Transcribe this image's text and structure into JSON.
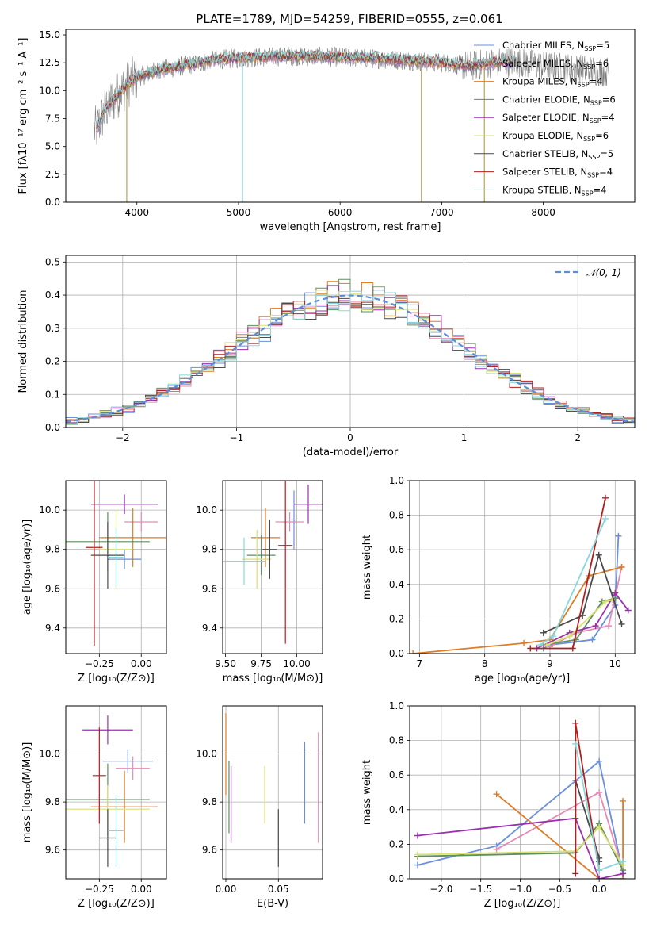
{
  "colors": [
    "#6a8fdc",
    "#e889b5",
    "#e07b26",
    "#5e8f5e",
    "#9a2fb0",
    "#d8e070",
    "#4a4a4a",
    "#b21f1f",
    "#86d8dc"
  ],
  "chart_data": [
    {
      "id": "spectrum",
      "type": "line",
      "title": "PLATE=1789, MJD=54259, FIBERID=0555, z=0.061",
      "xlabel": "wavelength [Angstrom, rest frame]",
      "ylabel": "Flux [fλ10⁻¹⁷ erg cm⁻² s⁻¹ A⁻¹]",
      "xlim": [
        3300,
        8900
      ],
      "ylim": [
        0,
        15.5
      ],
      "xticks": [
        4000,
        5000,
        6000,
        7000,
        8000
      ],
      "yticks": [
        0.0,
        2.5,
        5.0,
        7.5,
        10.0,
        12.5,
        15.0
      ],
      "ytick_labels": [
        "0.0",
        "2.5",
        "5.0",
        "7.5",
        "10.0",
        "12.5",
        "15.0"
      ],
      "grid": false,
      "legend_position": "right",
      "legend": [
        {
          "name": "Chabrier MILES, N",
          "sub": "SSP",
          "suffix": "=5"
        },
        {
          "name": "Salpeter MILES, N",
          "sub": "SSP",
          "suffix": "=6"
        },
        {
          "name": "Kroupa MILES, N",
          "sub": "SSP",
          "suffix": "=4"
        },
        {
          "name": "Chabrier ELODIE, N",
          "sub": "SSP",
          "suffix": "=6"
        },
        {
          "name": "Salpeter ELODIE, N",
          "sub": "SSP",
          "suffix": "=4"
        },
        {
          "name": "Kroupa ELODIE, N",
          "sub": "SSP",
          "suffix": "=6"
        },
        {
          "name": "Chabrier STELIB, N",
          "sub": "SSP",
          "suffix": "=5"
        },
        {
          "name": "Salpeter STELIB, N",
          "sub": "SSP",
          "suffix": "=4"
        },
        {
          "name": "Kroupa STELIB, N",
          "sub": "SSP",
          "suffix": "=4"
        }
      ],
      "data_color": "#808080",
      "continuum_x": [
        3600,
        3700,
        3900,
        4000,
        4200,
        4500,
        4800,
        5000,
        5200,
        5500,
        6000,
        6500,
        7000,
        7300,
        7500,
        7700,
        8000,
        8500,
        8900
      ],
      "continuum_y": [
        6.5,
        8.5,
        10.5,
        11.2,
        11.8,
        12.3,
        12.8,
        12.9,
        13.0,
        13.1,
        13.0,
        12.8,
        12.5,
        12.2,
        12.5,
        12.6,
        12.2,
        11.8,
        11.6
      ],
      "absorption_lines": [
        {
          "x": 3900,
          "y": 0
        },
        {
          "x": 5040,
          "y": 0
        },
        {
          "x": 6800,
          "y": 0
        },
        {
          "x": 7420,
          "y": 0
        }
      ]
    },
    {
      "id": "residuals",
      "type": "bar",
      "xlabel": "(data-model)/error",
      "ylabel": "Normed distribution",
      "xlim": [
        -2.5,
        2.5
      ],
      "ylim": [
        0,
        0.52
      ],
      "xticks": [
        -2,
        -1,
        0,
        1,
        2
      ],
      "xtick_labels": [
        "−2",
        "−1",
        "0",
        "1",
        "2"
      ],
      "yticks": [
        0.0,
        0.1,
        0.2,
        0.3,
        0.4,
        0.5
      ],
      "ytick_labels": [
        "0.0",
        "0.1",
        "0.2",
        "0.3",
        "0.4",
        "0.5"
      ],
      "grid": true,
      "legend_position": "top-right",
      "gauss_label": "𝒩(0, 1)",
      "gauss_color": "#5b8ed6",
      "bin_width": 0.1
    },
    {
      "id": "age-z",
      "type": "scatter",
      "xlabel": "Z [log₁₀(Z/Z⊙)]",
      "ylabel": "age  [log₁₀(age/yr)]",
      "xlim": [
        -0.45,
        0.15
      ],
      "ylim": [
        9.27,
        10.15
      ],
      "xticks": [
        -0.25,
        0.0
      ],
      "xtick_labels": [
        "−0.25",
        "0.00"
      ],
      "yticks": [
        9.4,
        9.6,
        9.8,
        10.0
      ],
      "ytick_labels": [
        "9.4",
        "9.6",
        "9.8",
        "10.0"
      ],
      "grid": true,
      "points": [
        {
          "x": -0.1,
          "xerr": 0.1,
          "y": 9.75,
          "yerr": 0.05
        },
        {
          "x": 0.0,
          "xerr": 0.1,
          "y": 9.94,
          "yerr": 0.05
        },
        {
          "x": -0.05,
          "xerr": 0.2,
          "y": 9.86,
          "yerr": 0.15
        },
        {
          "x": -0.2,
          "xerr": 0.25,
          "y": 9.84,
          "yerr": 0.15
        },
        {
          "x": -0.1,
          "xerr": 0.2,
          "y": 10.03,
          "yerr": 0.05
        },
        {
          "x": -0.15,
          "xerr": 0.1,
          "y": 9.8,
          "yerr": 0.2
        },
        {
          "x": -0.2,
          "xerr": 0.1,
          "y": 9.77,
          "yerr": 0.17
        },
        {
          "x": -0.28,
          "xerr": 0.05,
          "y": 9.81,
          "yerr": 0.5
        },
        {
          "x": -0.15,
          "xerr": 0.05,
          "y": 9.76,
          "yerr": 0.15
        }
      ]
    },
    {
      "id": "age-mass",
      "type": "scatter",
      "xlabel": "mass [log₁₀(M/M⊙)]",
      "ylabel": "",
      "xlim": [
        9.48,
        10.18
      ],
      "ylim": [
        9.27,
        10.15
      ],
      "xticks": [
        9.5,
        9.75,
        10.0
      ],
      "xtick_labels": [
        "9.50",
        "9.75",
        "10.00"
      ],
      "yticks": [
        9.4,
        9.6,
        9.8,
        10.0
      ],
      "ytick_labels": [
        "9.4",
        "9.6",
        "9.8",
        "10.0"
      ],
      "grid": true,
      "points": [
        {
          "x": 9.98,
          "xerr": 0.02,
          "y": 9.95,
          "yerr": 0.15
        },
        {
          "x": 9.95,
          "xerr": 0.1,
          "y": 9.94,
          "yerr": 0.05
        },
        {
          "x": 9.78,
          "xerr": 0.1,
          "y": 9.86,
          "yerr": 0.15
        },
        {
          "x": 9.75,
          "xerr": 0.1,
          "y": 9.77,
          "yerr": 0.1
        },
        {
          "x": 10.08,
          "xerr": 0.1,
          "y": 10.03,
          "yerr": 0.1
        },
        {
          "x": 9.72,
          "xerr": 0.1,
          "y": 9.75,
          "yerr": 0.15
        },
        {
          "x": 9.81,
          "xerr": 0.05,
          "y": 9.8,
          "yerr": 0.15
        },
        {
          "x": 9.92,
          "xerr": 0.05,
          "y": 9.82,
          "yerr": 0.5
        },
        {
          "x": 9.63,
          "xerr": 0.15,
          "y": 9.74,
          "yerr": 0.12
        }
      ]
    },
    {
      "id": "weight-age",
      "type": "line",
      "xlabel": "age  [log₁₀(age/yr)]",
      "ylabel": "mass weight",
      "xlim": [
        6.85,
        10.3
      ],
      "ylim": [
        0,
        1.0
      ],
      "xticks": [
        7,
        8,
        9,
        10
      ],
      "xtick_labels": [
        "7",
        "8",
        "9",
        "10"
      ],
      "yticks": [
        0.0,
        0.2,
        0.4,
        0.6,
        0.8,
        1.0
      ],
      "ytick_labels": [
        "0.0",
        "0.2",
        "0.4",
        "0.6",
        "0.8",
        "1.0"
      ],
      "grid": true,
      "series": [
        {
          "x": [
            8.9,
            9.0,
            9.65,
            10.0,
            10.05
          ],
          "y": [
            0.03,
            0.05,
            0.08,
            0.28,
            0.68
          ]
        },
        {
          "x": [
            9.0,
            9.4,
            9.9,
            10.1
          ],
          "y": [
            0.04,
            0.12,
            0.16,
            0.5
          ]
        },
        {
          "x": [
            6.9,
            8.6,
            9.0,
            9.6,
            10.1
          ],
          "y": [
            0.0,
            0.06,
            0.08,
            0.45,
            0.5
          ]
        },
        {
          "x": [
            8.9,
            9.4,
            9.8,
            10.0
          ],
          "y": [
            0.05,
            0.08,
            0.3,
            0.32
          ]
        },
        {
          "x": [
            8.8,
            9.3,
            9.7,
            10.0,
            10.2
          ],
          "y": [
            0.03,
            0.12,
            0.16,
            0.35,
            0.25
          ]
        },
        {
          "x": [
            8.95,
            9.3,
            9.85,
            9.95
          ],
          "y": [
            0.05,
            0.1,
            0.3,
            0.31
          ]
        },
        {
          "x": [
            8.9,
            9.5,
            9.75,
            10.1
          ],
          "y": [
            0.12,
            0.22,
            0.57,
            0.17
          ]
        },
        {
          "x": [
            8.7,
            9.35,
            9.85
          ],
          "y": [
            0.03,
            0.03,
            0.9
          ]
        },
        {
          "x": [
            8.85,
            9.05,
            9.85
          ],
          "y": [
            0.05,
            0.1,
            0.78
          ]
        }
      ]
    },
    {
      "id": "mass-z",
      "type": "scatter",
      "xlabel": "Z [log₁₀(Z/Z⊙)]",
      "ylabel": "mass [log₁₀(M/M⊙)]",
      "xlim": [
        -0.45,
        0.15
      ],
      "ylim": [
        9.48,
        10.2
      ],
      "xticks": [
        -0.25,
        0.0
      ],
      "xtick_labels": [
        "−0.25",
        "0.00"
      ],
      "yticks": [
        9.6,
        9.8,
        10.0
      ],
      "ytick_labels": [
        "9.6",
        "9.8",
        "10.0"
      ],
      "grid": true,
      "points": [
        {
          "x": -0.08,
          "xerr": 0.15,
          "y": 9.97,
          "yerr": 0.05
        },
        {
          "x": -0.05,
          "xerr": 0.1,
          "y": 9.94,
          "yerr": 0.05
        },
        {
          "x": -0.1,
          "xerr": 0.2,
          "y": 9.78,
          "yerr": 0.15
        },
        {
          "x": -0.2,
          "xerr": 0.25,
          "y": 9.81,
          "yerr": 0.15
        },
        {
          "x": -0.2,
          "xerr": 0.15,
          "y": 10.1,
          "yerr": 0.06
        },
        {
          "x": -0.2,
          "xerr": 0.25,
          "y": 9.77,
          "yerr": 0.1
        },
        {
          "x": -0.2,
          "xerr": 0.05,
          "y": 9.65,
          "yerr": 0.12
        },
        {
          "x": -0.25,
          "xerr": 0.04,
          "y": 9.91,
          "yerr": 0.2
        },
        {
          "x": -0.15,
          "xerr": 0.05,
          "y": 9.68,
          "yerr": 0.15
        }
      ]
    },
    {
      "id": "mass-ebv",
      "type": "scatter",
      "xlabel": "E(B-V)",
      "ylabel": "",
      "xlim": [
        -0.003,
        0.092
      ],
      "ylim": [
        9.48,
        10.2
      ],
      "xticks": [
        0.0,
        0.05
      ],
      "xtick_labels": [
        "0.00",
        "0.05"
      ],
      "yticks": [
        9.6,
        9.8,
        10.0
      ],
      "ytick_labels": [
        "9.6",
        "9.8",
        "10.0"
      ],
      "grid": true,
      "points": [
        {
          "x": 0.075,
          "y": 9.88,
          "yerr": 0.17
        },
        {
          "x": 0.088,
          "y": 9.86,
          "yerr": 0.23
        },
        {
          "x": 0.0,
          "y": 10.0,
          "yerr": 0.17
        },
        {
          "x": 0.003,
          "y": 9.82,
          "yerr": 0.15
        },
        {
          "x": 0.005,
          "y": 9.79,
          "yerr": 0.16
        },
        {
          "x": 0.037,
          "y": 9.83,
          "yerr": 0.12
        },
        {
          "x": 0.05,
          "y": 9.65,
          "yerr": 0.12
        }
      ]
    },
    {
      "id": "weight-z",
      "type": "line",
      "xlabel": "Z [log₁₀(Z/Z⊙)]",
      "ylabel": "mass weight",
      "xlim": [
        -2.4,
        0.45
      ],
      "ylim": [
        0,
        1.0
      ],
      "xticks": [
        -2.0,
        -1.5,
        -1.0,
        -0.5,
        0.0
      ],
      "xtick_labels": [
        "−2.0",
        "−1.5",
        "−1.0",
        "−0.5",
        "0.0"
      ],
      "yticks": [
        0.0,
        0.2,
        0.4,
        0.6,
        0.8,
        1.0
      ],
      "ytick_labels": [
        "0.0",
        "0.2",
        "0.4",
        "0.6",
        "0.8",
        "1.0"
      ],
      "grid": true,
      "series": [
        {
          "x": [
            -2.3,
            -1.3,
            0.0,
            0.3
          ],
          "y": [
            0.08,
            0.19,
            0.68,
            0.03
          ]
        },
        {
          "x": [
            -1.3,
            0.0,
            0.3
          ],
          "y": [
            0.17,
            0.5,
            0.05
          ]
        },
        {
          "x": [
            -1.3,
            0.0,
            0.3,
            0.3
          ],
          "y": [
            0.49,
            0.0,
            0.0,
            0.45
          ]
        },
        {
          "x": [
            -2.3,
            -0.3,
            0.0,
            0.3
          ],
          "y": [
            0.13,
            0.15,
            0.32,
            0.05
          ]
        },
        {
          "x": [
            -2.3,
            -0.3,
            0.0,
            0.3
          ],
          "y": [
            0.25,
            0.35,
            0.0,
            0.03
          ]
        },
        {
          "x": [
            -2.3,
            -0.3,
            0.0,
            0.3
          ],
          "y": [
            0.14,
            0.16,
            0.3,
            0.08
          ]
        },
        {
          "x": [
            -0.3,
            -0.3,
            0.0,
            0.0
          ],
          "y": [
            0.15,
            0.57,
            0.12,
            0.1
          ]
        },
        {
          "x": [
            -0.3,
            -0.3,
            0.0
          ],
          "y": [
            0.03,
            0.9,
            0.05
          ]
        },
        {
          "x": [
            -0.3,
            0.0,
            0.3
          ],
          "y": [
            0.78,
            0.05,
            0.1
          ]
        }
      ]
    }
  ]
}
